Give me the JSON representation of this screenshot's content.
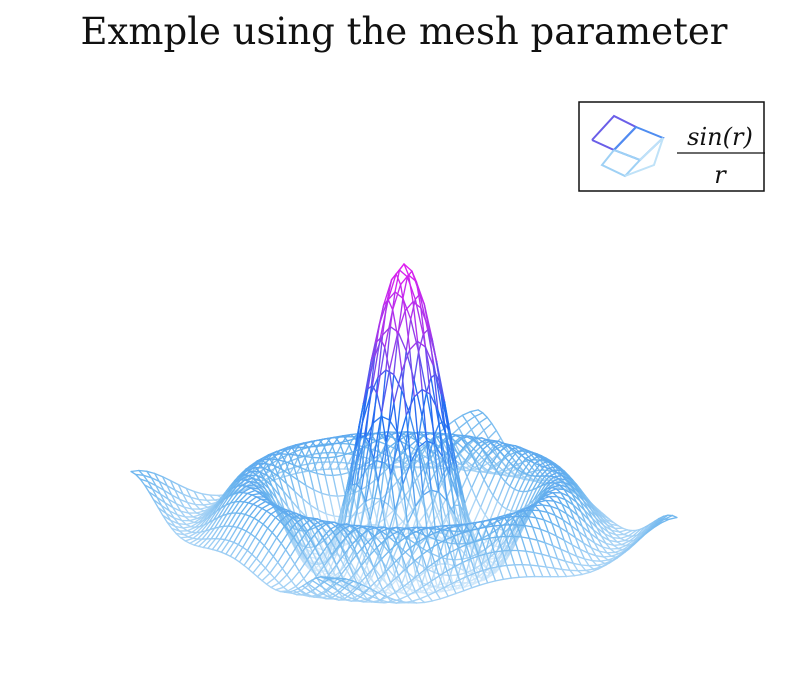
{
  "chart_data": {
    "type": "surface-mesh",
    "title": "Exmple using the mesh parameter",
    "xlabel": "",
    "ylabel": "",
    "zlabel": "",
    "function": "z = sin(r)/r",
    "legend": {
      "position": "top-right",
      "entries": [
        {
          "numerator": "sin(r)",
          "denominator": "r"
        }
      ]
    },
    "domain": {
      "x": [
        -10,
        10
      ],
      "y": [
        -10,
        10
      ]
    },
    "zlim": [
      -0.22,
      1.0
    ],
    "mesh_samples": 45,
    "colormap": [
      "#d9ecfb",
      "#6ab4ee",
      "#1e6ff2",
      "#9b3bea",
      "#e21df0"
    ],
    "grid": false,
    "axes_visible": false
  }
}
